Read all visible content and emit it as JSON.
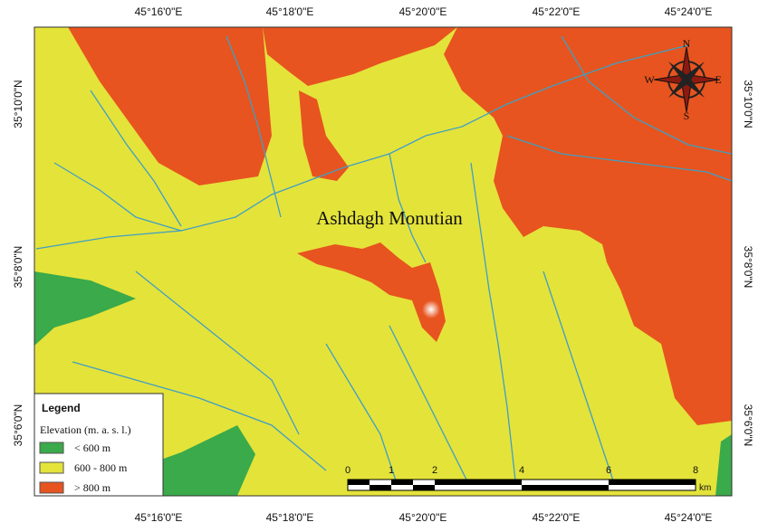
{
  "map": {
    "title": "Ashdagh Monutian",
    "top_labels": [
      "45°16'0\"E",
      "45°18'0\"E",
      "45°20'0\"E",
      "45°22'0\"E",
      "45°24'0\"E"
    ],
    "bottom_labels": [
      "45°16'0\"E",
      "45°18'0\"E",
      "45°20'0\"E",
      "45°22'0\"E",
      "45°24'0\"E"
    ],
    "left_labels": [
      "35°10'0\"N",
      "35°8'0\"N",
      "35°6'0\"N"
    ],
    "right_labels": [
      "35°10'0\"N",
      "35°8'0\"N",
      "35°6'0\"N"
    ],
    "compass": {
      "n": "N",
      "s": "S",
      "e": "E",
      "w": "W"
    },
    "scale": {
      "labels": [
        "0",
        "1",
        "2",
        "4",
        "6",
        "8"
      ],
      "unit": "km"
    }
  },
  "legend": {
    "title": "Legend",
    "subtitle": "Elevation (m. a. s. l.)",
    "items": [
      "< 600 m",
      "600 - 800 m",
      "> 800 m"
    ]
  }
}
